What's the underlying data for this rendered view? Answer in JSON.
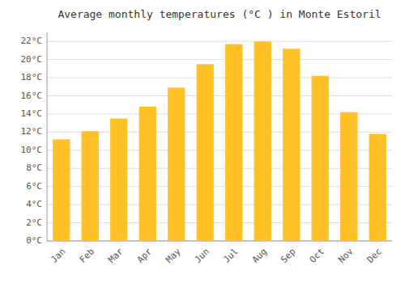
{
  "chart_data": {
    "type": "bar",
    "title": "Average monthly temperatures (°C ) in Monte Estoril",
    "categories": [
      "Jan",
      "Feb",
      "Mar",
      "Apr",
      "May",
      "Jun",
      "Jul",
      "Aug",
      "Sep",
      "Oct",
      "Nov",
      "Dec"
    ],
    "values": [
      11.2,
      12.1,
      13.5,
      14.8,
      16.9,
      19.5,
      21.7,
      22.0,
      21.2,
      18.2,
      14.2,
      11.8
    ],
    "color": "#FFC125",
    "ylim": [
      0,
      23
    ],
    "yticks": [
      {
        "value": 0,
        "label": "0°C"
      },
      {
        "value": 2,
        "label": "2°C"
      },
      {
        "value": 4,
        "label": "4°C"
      },
      {
        "value": 6,
        "label": "6°C"
      },
      {
        "value": 8,
        "label": "8°C"
      },
      {
        "value": 10,
        "label": "10°C"
      },
      {
        "value": 12,
        "label": "12°C"
      },
      {
        "value": 14,
        "label": "14°C"
      },
      {
        "value": 16,
        "label": "16°C"
      },
      {
        "value": 18,
        "label": "18°C"
      },
      {
        "value": 20,
        "label": "20°C"
      },
      {
        "value": 22,
        "label": "22°C"
      }
    ],
    "grid": true
  }
}
